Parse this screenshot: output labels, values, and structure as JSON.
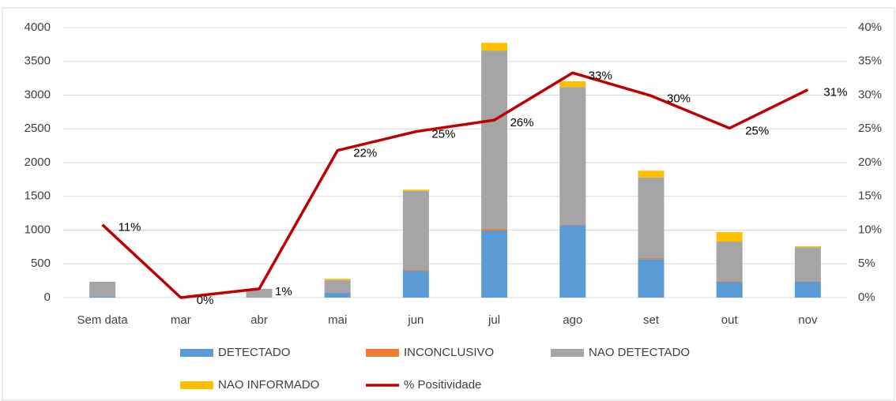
{
  "chart_data": {
    "type": "bar",
    "stacked": true,
    "categories": [
      "Sem data",
      "mar",
      "abr",
      "mai",
      "jun",
      "jul",
      "ago",
      "set",
      "out",
      "nov"
    ],
    "series": [
      {
        "name": "DETECTADO",
        "color": "#5b9bd5",
        "values": [
          20,
          0,
          5,
          70,
          400,
          995,
          1075,
          570,
          235,
          235
        ]
      },
      {
        "name": "INCONCLUSIVO",
        "color": "#ed7d31",
        "values": [
          0,
          0,
          0,
          5,
          15,
          25,
          10,
          15,
          15,
          5
        ]
      },
      {
        "name": "NAO DETECTADO",
        "color": "#a5a5a5",
        "values": [
          215,
          0,
          125,
          185,
          1165,
          2640,
          2035,
          1195,
          580,
          505
        ]
      },
      {
        "name": "NAO INFORMADO",
        "color": "#ffc000",
        "values": [
          0,
          0,
          0,
          20,
          20,
          115,
          85,
          100,
          140,
          15
        ]
      },
      {
        "name": "% Positividade",
        "color": "#c00000",
        "type": "line",
        "axis": "y2",
        "values": [
          10.8,
          0,
          1.3,
          21.8,
          24.6,
          26.3,
          33.3,
          29.9,
          25.1,
          30.8
        ],
        "value_labels": [
          "11%",
          "0%",
          "1%",
          "22%",
          "25%",
          "26%",
          "33%",
          "30%",
          "25%",
          "31%"
        ]
      }
    ],
    "ylim": [
      0,
      4000
    ],
    "yticks": [
      0,
      500,
      1000,
      1500,
      2000,
      2500,
      3000,
      3500,
      4000
    ],
    "y2lim": [
      0,
      40
    ],
    "y2ticks": [
      {
        "value": 0,
        "label": "0%"
      },
      {
        "value": 5,
        "label": "5%"
      },
      {
        "value": 10,
        "label": "10%"
      },
      {
        "value": 15,
        "label": "15%"
      },
      {
        "value": 20,
        "label": "20%"
      },
      {
        "value": 25,
        "label": "25%"
      },
      {
        "value": 30,
        "label": "30%"
      },
      {
        "value": 35,
        "label": "35%"
      },
      {
        "value": 40,
        "label": "40%"
      }
    ],
    "grid": true,
    "legend": "bottom"
  }
}
